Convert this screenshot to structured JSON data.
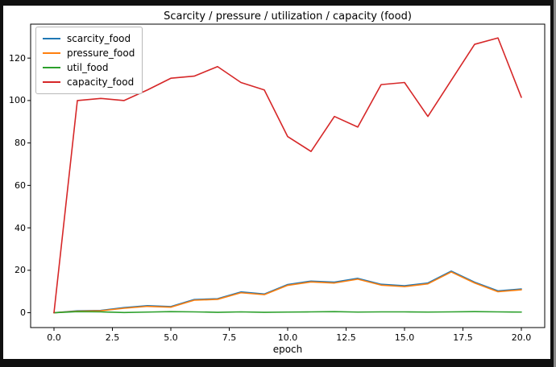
{
  "frame": {
    "background_color": "#101010",
    "figure_background": "#ffffff",
    "window_edge_color": "#8a8a8a",
    "axes_edge_color": "#000000",
    "legend_edge_color": "#b9b9b9"
  },
  "chart_data": {
    "type": "line",
    "title": "Scarcity / pressure / utilization / capacity (food)",
    "xlabel": "epoch",
    "ylabel": "",
    "grid": false,
    "legend_position": "upper left",
    "xlim": [
      -1,
      21
    ],
    "ylim": [
      -7,
      136
    ],
    "x": [
      0,
      1,
      2,
      3,
      4,
      5,
      6,
      7,
      8,
      9,
      10,
      11,
      12,
      13,
      14,
      15,
      16,
      17,
      18,
      19,
      20
    ],
    "series": [
      {
        "name": "scarcity_food",
        "color": "#1f77b4",
        "values": [
          0,
          0.9,
          1.1,
          2.4,
          3.3,
          2.9,
          6.2,
          6.6,
          9.8,
          8.8,
          13.3,
          14.9,
          14.4,
          16.2,
          13.4,
          12.7,
          14.0,
          19.6,
          14.4,
          10.3,
          11.2
        ]
      },
      {
        "name": "pressure_food",
        "color": "#ff7f0e",
        "values": [
          0,
          0.7,
          0.9,
          2.1,
          3.0,
          2.6,
          5.9,
          6.3,
          9.4,
          8.5,
          12.9,
          14.5,
          14.0,
          15.8,
          13.0,
          12.3,
          13.6,
          19.2,
          14.0,
          9.9,
          10.8
        ]
      },
      {
        "name": "util_food",
        "color": "#2ca02c",
        "values": [
          0,
          0.5,
          0.4,
          0.1,
          0.3,
          0.5,
          0.4,
          0.2,
          0.4,
          0.2,
          0.3,
          0.4,
          0.5,
          0.3,
          0.4,
          0.4,
          0.3,
          0.4,
          0.5,
          0.4,
          0.3
        ]
      },
      {
        "name": "capacity_food",
        "color": "#d62728",
        "values": [
          0,
          100,
          101,
          100,
          105,
          110.5,
          111.5,
          116,
          108.5,
          105,
          83,
          76,
          92.5,
          87.5,
          107.5,
          108.5,
          92.5,
          109.5,
          126.5,
          129.5,
          101.5
        ]
      }
    ],
    "x_ticks": {
      "values": [
        0,
        2.5,
        5,
        7.5,
        10,
        12.5,
        15,
        17.5,
        20
      ],
      "labels": [
        "0.0",
        "2.5",
        "5.0",
        "7.5",
        "10.0",
        "12.5",
        "15.0",
        "17.5",
        "20.0"
      ]
    },
    "y_ticks": {
      "values": [
        0,
        20,
        40,
        60,
        80,
        100,
        120
      ],
      "labels": [
        "0",
        "20",
        "40",
        "60",
        "80",
        "100",
        "120"
      ]
    }
  }
}
